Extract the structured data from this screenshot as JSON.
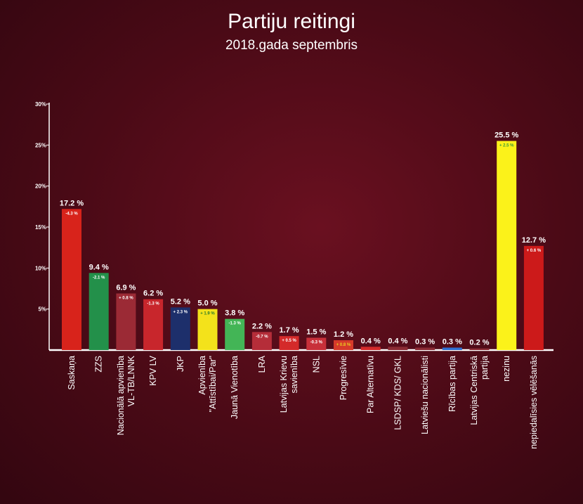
{
  "title": "Partiju reitingi",
  "subtitle": "2018.gada septembris",
  "chart_data": {
    "type": "bar",
    "ylim": [
      0,
      30
    ],
    "yticks": [
      5,
      10,
      15,
      20,
      25,
      30
    ],
    "ytick_labels": [
      "5%",
      "10%",
      "15%",
      "20%",
      "25%",
      "30%"
    ],
    "categories": [
      [
        "Saskaņa"
      ],
      [
        "ZZS"
      ],
      [
        "Nacionālā apvienība",
        "VL-TB/LNNK"
      ],
      [
        "KPV LV"
      ],
      [
        "JKP"
      ],
      [
        "Apvienība",
        "\"Attīstībai/Par\""
      ],
      [
        "Jaunā Vienotība"
      ],
      [
        "LRA"
      ],
      [
        "Latvijas Krievu",
        "savienība"
      ],
      [
        "NSL"
      ],
      [
        "Progresīvie"
      ],
      [
        "Par Alternatīvu"
      ],
      [
        "LSDSP/ KDS/ GKL"
      ],
      [
        "Latviešu nacionālisti"
      ],
      [
        "Rīcības partija"
      ],
      [
        "Latvijas Centriskā",
        "partija"
      ],
      [
        "nezinu"
      ],
      [
        "nepiedalīsies vēlēšanās"
      ]
    ],
    "values": [
      17.2,
      9.4,
      6.9,
      6.2,
      5.2,
      5.0,
      3.8,
      2.2,
      1.7,
      1.5,
      1.2,
      0.4,
      0.4,
      0.3,
      0.3,
      0.2,
      25.5,
      12.7
    ],
    "value_labels": [
      "17.2 %",
      "9.4 %",
      "6.9 %",
      "6.2 %",
      "5.2 %",
      "5.0 %",
      "3.8 %",
      "2.2 %",
      "1.7 %",
      "1.5 %",
      "1.2 %",
      "0.4 %",
      "0.4 %",
      "0.3 %",
      "0.3 %",
      "0.2 %",
      "25.5 %",
      "12.7 %"
    ],
    "change_labels": [
      "-4.3 %",
      "-2.1 %",
      "+ 0.8 %",
      "-1.3 %",
      "+ 2.3 %",
      "+ 1.9 %",
      "-1.3 %",
      "-0.7 %",
      "+ 0.5 %",
      "-0.3 %",
      "+ 0.8 %",
      "",
      "",
      "",
      "",
      "",
      "+ 2.5 %",
      "+ 0.6 %"
    ],
    "colors": [
      "#d8231b",
      "#23904a",
      "#9b2a35",
      "#c8262c",
      "#1d2f6b",
      "#f3e21b",
      "#43b556",
      "#b52d39",
      "#d42a2a",
      "#c8303a",
      "#d63a2a",
      "#d42a2a",
      "#8a2a33",
      "#8a2a33",
      "#2f6fd2",
      "#8a2a33",
      "#fbf21a",
      "#cc1a1a"
    ],
    "change_colors": [
      "#ffffff",
      "#ffffff",
      "#ffffff",
      "#ffffff",
      "#ffffff",
      "#2a7a2a",
      "#ffffff",
      "#ffffff",
      "#ffffff",
      "#ffffff",
      "#e8d020",
      "#ffffff",
      "#ffffff",
      "#ffffff",
      "#ffffff",
      "#ffffff",
      "#3a9a3a",
      "#ffffff"
    ],
    "grid": false
  }
}
